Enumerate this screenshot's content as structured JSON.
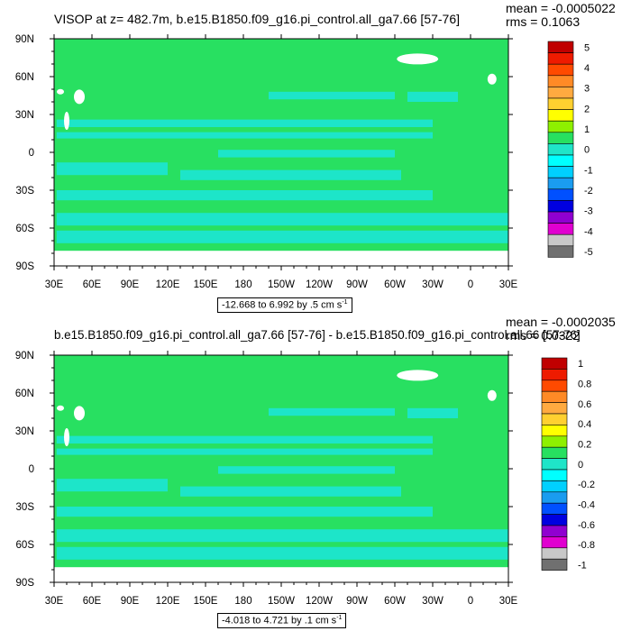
{
  "colors": {
    "ocean_main": "#28e061",
    "ocean_band": "#1de5c9",
    "land": "#ffffff",
    "frame": "#000000"
  },
  "panels": [
    {
      "title": "VISOP at z= 482.7m, b.e15.B1850.f09_g16.pi_control.all_ga7.66 [57-76]",
      "mean": "mean = -0.0005022",
      "rms": "rms = 0.1063",
      "range_text": "-12.668 to 6.992 by .5 cm s",
      "range_unit_sup": "-1"
    },
    {
      "title": "b.e15.B1850.f09_g16.pi_control.all_ga7.66 [57-76] - b.e15.B1850.f09_g16.pi_control.all.66 [57-76]",
      "mean": "mean = -0.0002035",
      "rms": "rms = 0.0322",
      "range_text": "-4.018 to 4.721 by .1 cm s",
      "range_unit_sup": "-1"
    }
  ],
  "chart_data": [
    {
      "type": "heatmap",
      "title": "VISOP at z= 482.7m, b.e15.B1850.f09_g16.pi_control.all_ga7.66 [57-76]",
      "x_tick_labels": [
        "30E",
        "60E",
        "90E",
        "120E",
        "150E",
        "180",
        "150W",
        "120W",
        "90W",
        "60W",
        "30W",
        "0",
        "30E"
      ],
      "y_tick_labels": [
        "90N",
        "60N",
        "30N",
        "0",
        "30S",
        "60S",
        "90S"
      ],
      "x_lon_range": [
        30,
        390
      ],
      "y_lat_range": [
        -90,
        90
      ],
      "colorbar": {
        "labels": [
          "5",
          "4",
          "3",
          "2",
          "1",
          "0",
          "-1",
          "-2",
          "-3",
          "-4",
          "-5"
        ],
        "colors": [
          "#c00000",
          "#ee1b00",
          "#ff4a00",
          "#ff8a26",
          "#ffaa40",
          "#ffd030",
          "#ffff00",
          "#8ef000",
          "#27e060",
          "#1fe5c8",
          "#00ffff",
          "#00d0ff",
          "#1a9cf0",
          "#0050ff",
          "#0000e0",
          "#9000d0",
          "#e000d0",
          "#c8c8c8",
          "#707070"
        ]
      },
      "mean": -0.0005022,
      "rms": 0.1063,
      "contour_min": -12.668,
      "contour_max": 6.992,
      "contour_interval": 0.5,
      "units": "cm s-1"
    },
    {
      "type": "heatmap",
      "title": "b.e15.B1850.f09_g16.pi_control.all_ga7.66 [57-76] - b.e15.B1850.f09_g16.pi_control.all.66 [57-76]",
      "x_tick_labels": [
        "30E",
        "60E",
        "90E",
        "120E",
        "150E",
        "180",
        "150W",
        "120W",
        "90W",
        "60W",
        "30W",
        "0",
        "30E"
      ],
      "y_tick_labels": [
        "90N",
        "60N",
        "30N",
        "0",
        "30S",
        "60S",
        "90S"
      ],
      "x_lon_range": [
        30,
        390
      ],
      "y_lat_range": [
        -90,
        90
      ],
      "colorbar": {
        "labels": [
          "1",
          "0.8",
          "0.6",
          "0.4",
          "0.2",
          "0",
          "-0.2",
          "-0.4",
          "-0.6",
          "-0.8",
          "-1"
        ],
        "colors": [
          "#c00000",
          "#ee1b00",
          "#ff4a00",
          "#ff8a26",
          "#ffaa40",
          "#ffd030",
          "#ffff00",
          "#8ef000",
          "#27e060",
          "#1fe5c8",
          "#00ffff",
          "#00d0ff",
          "#1a9cf0",
          "#0050ff",
          "#0000e0",
          "#9000d0",
          "#e000d0",
          "#c8c8c8",
          "#707070"
        ]
      },
      "mean": -0.0002035,
      "rms": 0.0322,
      "contour_min": -4.018,
      "contour_max": 4.721,
      "contour_interval": 0.1,
      "units": "cm s-1"
    }
  ]
}
